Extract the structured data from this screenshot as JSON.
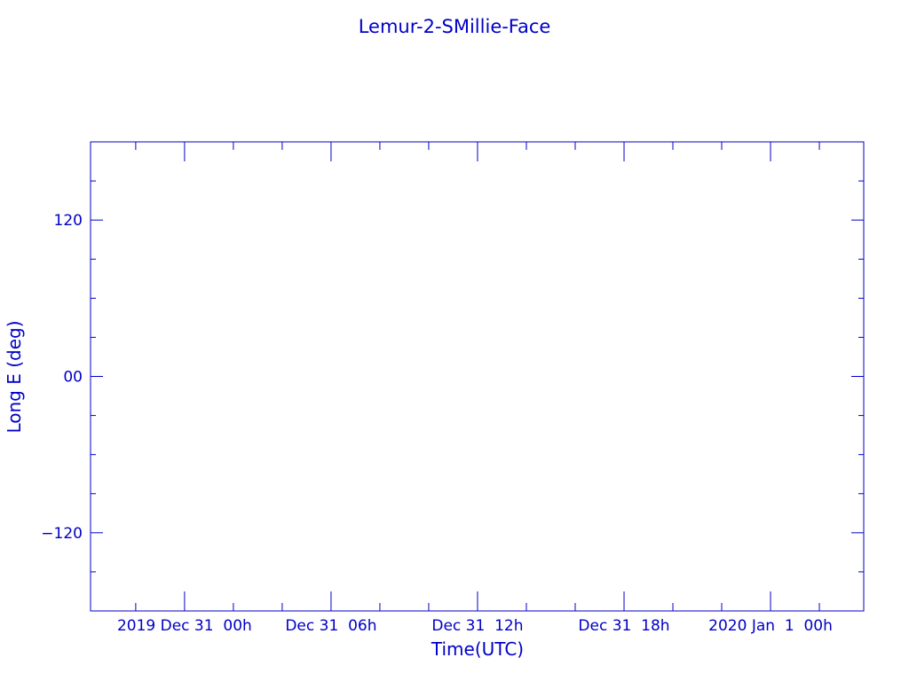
{
  "chart_data": {
    "type": "line",
    "title": "Lemur-2-SMillie-Face",
    "xlabel": "Time(UTC)",
    "ylabel": "Long E (deg)",
    "xlim": [
      "2019-12-30T20:09",
      "2020-01-01T03:49"
    ],
    "ylim": [
      -180,
      180
    ],
    "xticks": [
      {
        "t": "2019-12-31T00:00",
        "label": "2019 Dec 31  00h"
      },
      {
        "t": "2019-12-31T06:00",
        "label": "Dec 31  06h"
      },
      {
        "t": "2019-12-31T12:00",
        "label": "Dec 31  12h"
      },
      {
        "t": "2019-12-31T18:00",
        "label": "Dec 31  18h"
      },
      {
        "t": "2020-01-01T00:00",
        "label": "2020 Jan  1  00h"
      }
    ],
    "x_minor_step_hours": 2,
    "yticks": [
      {
        "v": 120,
        "label": "120"
      },
      {
        "v": 0,
        "label": "00"
      },
      {
        "v": -120,
        "label": "−120"
      }
    ],
    "y_minor_step": 30,
    "series": [],
    "grid": false,
    "color": "#0000c8"
  }
}
